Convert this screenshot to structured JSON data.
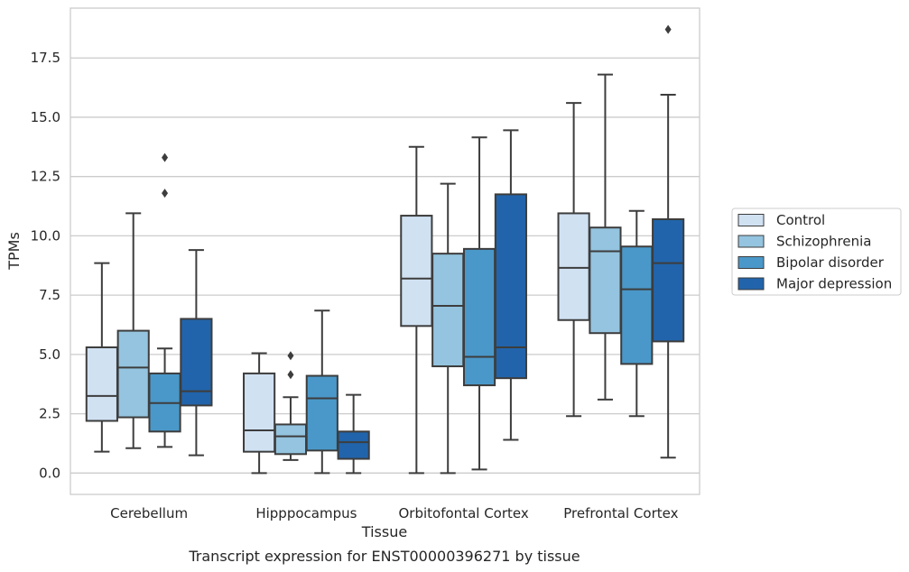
{
  "chart_data": {
    "type": "box",
    "title": "",
    "caption": "Transcript expression for ENST00000396271 by tissue",
    "xlabel": "Tissue",
    "ylabel": "TPMs",
    "ylim": [
      -0.9,
      19.6
    ],
    "yticks": [
      0.0,
      2.5,
      5.0,
      7.5,
      10.0,
      12.5,
      15.0,
      17.5
    ],
    "ytick_labels": [
      "0.0",
      "2.5",
      "5.0",
      "7.5",
      "10.0",
      "12.5",
      "15.0",
      "17.5"
    ],
    "grid": "horizontal",
    "legend_position": "right",
    "categories": [
      "Cerebellum",
      "Hipppocampus",
      "Orbitofontal Cortex",
      "Prefrontal Cortex"
    ],
    "series": [
      {
        "name": "Control",
        "color": "#d0e1f2",
        "boxes": [
          {
            "whislo": 0.9,
            "q1": 2.2,
            "med": 3.25,
            "q3": 5.3,
            "whishi": 8.85,
            "fliers": []
          },
          {
            "whislo": 0.0,
            "q1": 0.9,
            "med": 1.8,
            "q3": 4.2,
            "whishi": 5.05,
            "fliers": []
          },
          {
            "whislo": 0.0,
            "q1": 6.2,
            "med": 8.2,
            "q3": 10.85,
            "whishi": 13.75,
            "fliers": []
          },
          {
            "whislo": 2.4,
            "q1": 6.45,
            "med": 8.65,
            "q3": 10.95,
            "whishi": 15.6,
            "fliers": []
          }
        ]
      },
      {
        "name": "Schizophrenia",
        "color": "#94c4df",
        "boxes": [
          {
            "whislo": 1.05,
            "q1": 2.35,
            "med": 4.45,
            "q3": 6.0,
            "whishi": 10.95,
            "fliers": []
          },
          {
            "whislo": 0.55,
            "q1": 0.8,
            "med": 1.55,
            "q3": 2.05,
            "whishi": 3.2,
            "fliers": [
              4.15,
              4.95
            ]
          },
          {
            "whislo": 0.0,
            "q1": 4.5,
            "med": 7.05,
            "q3": 9.25,
            "whishi": 12.2,
            "fliers": []
          },
          {
            "whislo": 3.1,
            "q1": 5.9,
            "med": 9.35,
            "q3": 10.35,
            "whishi": 16.8,
            "fliers": []
          }
        ]
      },
      {
        "name": "Bipolar disorder",
        "color": "#4a98c9",
        "boxes": [
          {
            "whislo": 1.1,
            "q1": 1.75,
            "med": 2.95,
            "q3": 4.2,
            "whishi": 5.25,
            "fliers": [
              11.8,
              13.3
            ]
          },
          {
            "whislo": 0.0,
            "q1": 0.95,
            "med": 3.15,
            "q3": 4.1,
            "whishi": 6.85,
            "fliers": []
          },
          {
            "whislo": 0.15,
            "q1": 3.7,
            "med": 4.9,
            "q3": 9.45,
            "whishi": 14.15,
            "fliers": []
          },
          {
            "whislo": 2.4,
            "q1": 4.6,
            "med": 7.75,
            "q3": 9.55,
            "whishi": 11.05,
            "fliers": []
          }
        ]
      },
      {
        "name": "Major depression",
        "color": "#2164ab",
        "boxes": [
          {
            "whislo": 0.75,
            "q1": 2.85,
            "med": 3.45,
            "q3": 6.5,
            "whishi": 9.4,
            "fliers": []
          },
          {
            "whislo": 0.0,
            "q1": 0.6,
            "med": 1.3,
            "q3": 1.75,
            "whishi": 3.3,
            "fliers": []
          },
          {
            "whislo": 1.4,
            "q1": 4.0,
            "med": 5.3,
            "q3": 11.75,
            "whishi": 14.45,
            "fliers": []
          },
          {
            "whislo": 0.65,
            "q1": 5.55,
            "med": 8.85,
            "q3": 10.7,
            "whishi": 15.95,
            "fliers": [
              18.7
            ]
          }
        ]
      }
    ]
  }
}
